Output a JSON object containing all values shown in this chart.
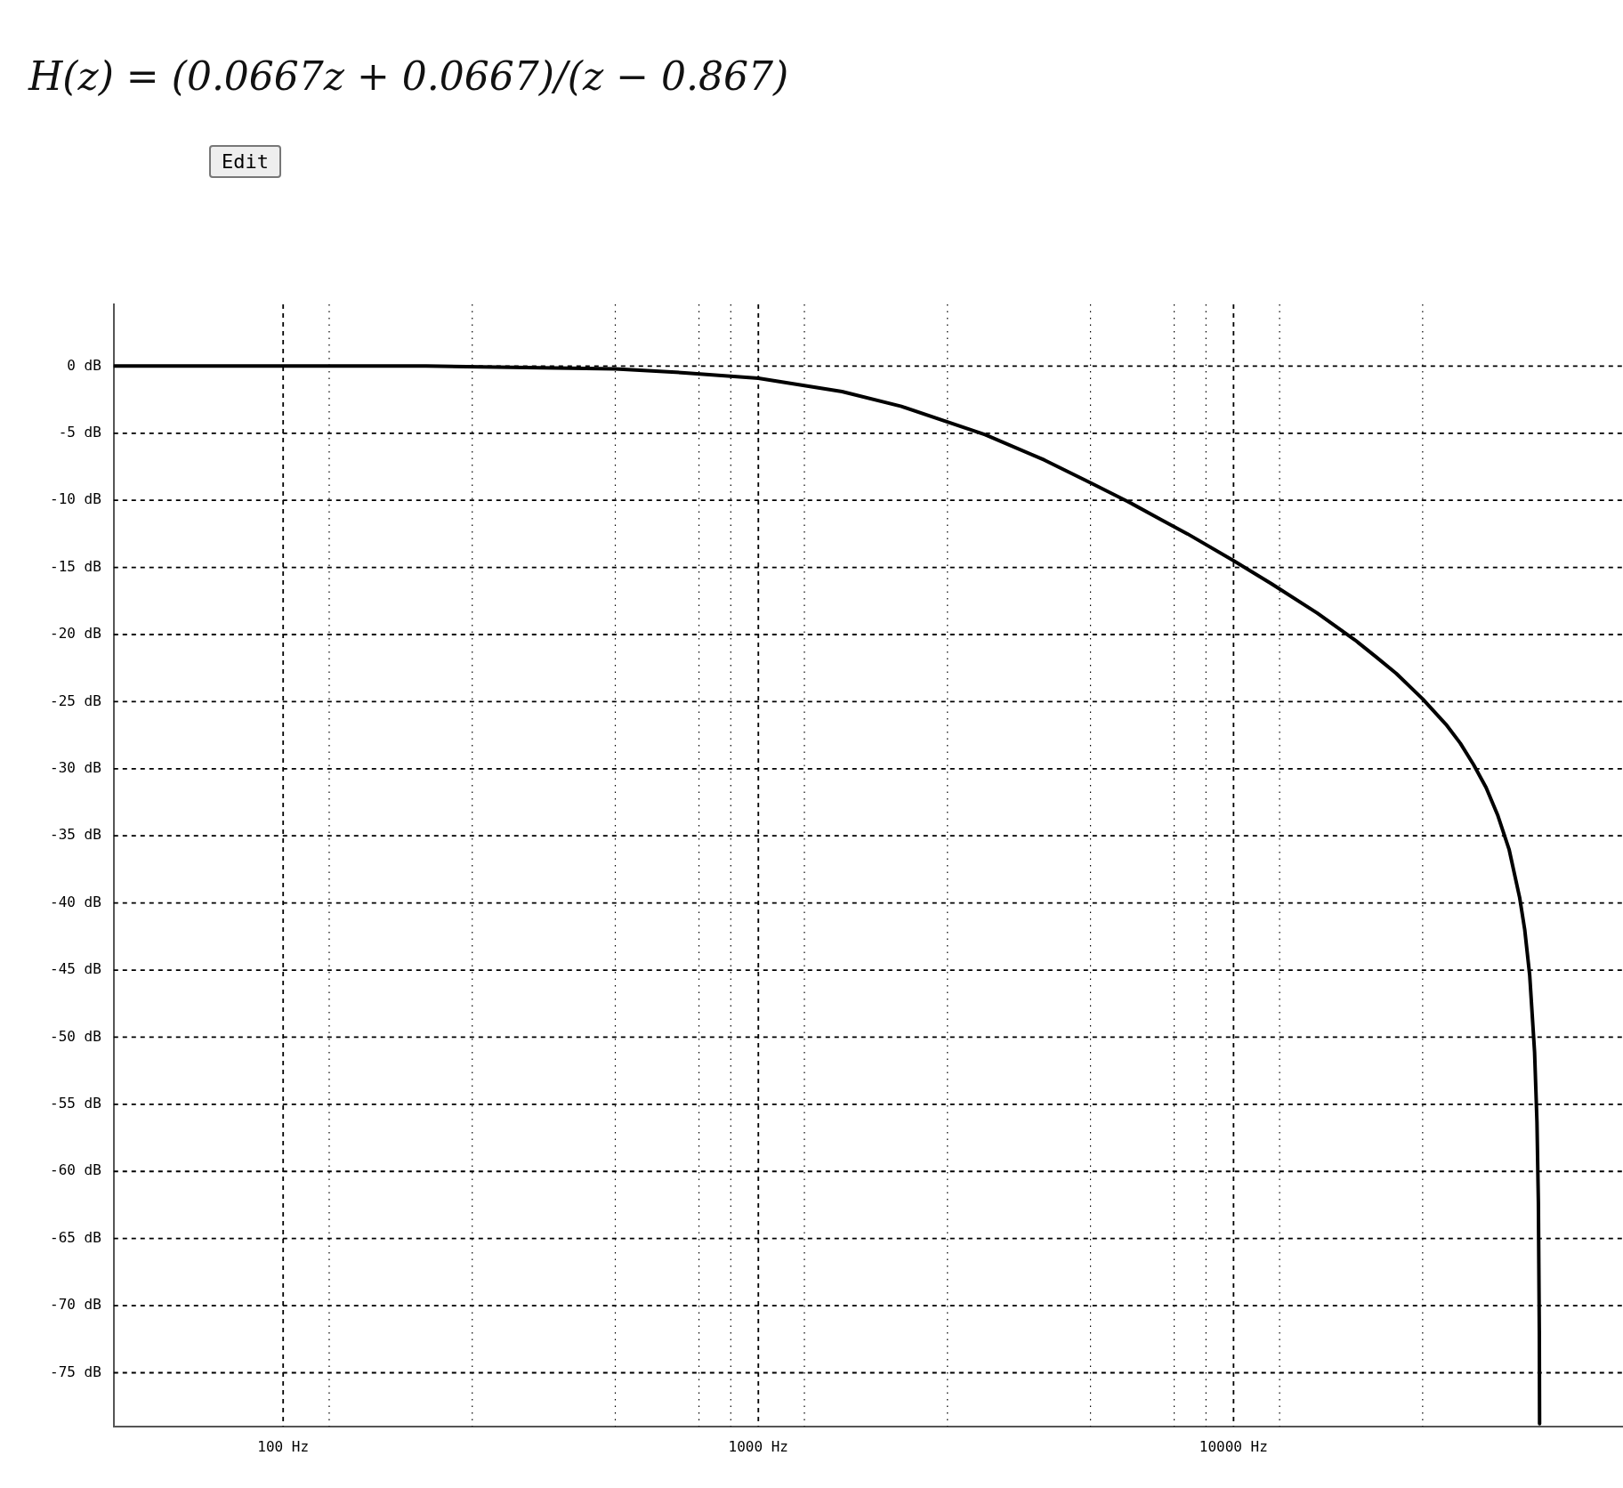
{
  "chart_data": {
    "type": "line",
    "title": "H(z) = (0.0667z + 0.0667)/(z − 0.867)",
    "annotations": [
      "Edit"
    ],
    "x": [
      44,
      100,
      200,
      500,
      700,
      1000,
      1500,
      2000,
      3000,
      4000,
      5000,
      6000,
      7000,
      8000,
      10000,
      12000,
      15000,
      18000,
      20000,
      22000,
      25000,
      28000,
      30000,
      32000,
      34000,
      36000,
      38000,
      40000,
      41000,
      42000,
      43000,
      43500,
      43800,
      44000,
      44055
    ],
    "values": [
      0.0,
      0.0,
      0.0,
      -0.2,
      -0.5,
      -0.9,
      -1.9,
      -3.0,
      -5.1,
      -7.0,
      -8.7,
      -10.1,
      -11.4,
      -12.5,
      -14.5,
      -16.2,
      -18.4,
      -20.4,
      -21.7,
      -22.9,
      -24.8,
      -26.7,
      -28.1,
      -29.7,
      -31.4,
      -33.5,
      -36.0,
      -39.6,
      -42.0,
      -45.4,
      -51.1,
      -56.3,
      -62.3,
      -71.9,
      -78.8
    ],
    "color": "#000000",
    "marker": "none",
    "line_style": "solid",
    "log": "x",
    "grid": true,
    "xlim": [
      44,
      66000
    ],
    "ylim": [
      -79,
      4.6
    ],
    "xticks": [
      {
        "value": 100,
        "label": "100 Hz"
      },
      {
        "value": 125,
        "label": null
      },
      {
        "value": 250,
        "label": null
      },
      {
        "value": 500,
        "label": null
      },
      {
        "value": 750,
        "label": null
      },
      {
        "value": 875,
        "label": null
      },
      {
        "value": 1000,
        "label": "1000 Hz"
      },
      {
        "value": 1250,
        "label": null
      },
      {
        "value": 2500,
        "label": null
      },
      {
        "value": 5000,
        "label": null
      },
      {
        "value": 7500,
        "label": null
      },
      {
        "value": 8750,
        "label": null
      },
      {
        "value": 10000,
        "label": "10000 Hz"
      },
      {
        "value": 12500,
        "label": null
      },
      {
        "value": 25000,
        "label": null
      }
    ],
    "yticks": [
      {
        "value": 0,
        "label": "0 dB"
      },
      {
        "value": -5,
        "label": "-5 dB"
      },
      {
        "value": -10,
        "label": "-10 dB"
      },
      {
        "value": -15,
        "label": "-15 dB"
      },
      {
        "value": -20,
        "label": "-20 dB"
      },
      {
        "value": -25,
        "label": "-25 dB"
      },
      {
        "value": -30,
        "label": "-30 dB"
      },
      {
        "value": -35,
        "label": "-35 dB"
      },
      {
        "value": -40,
        "label": "-40 dB"
      },
      {
        "value": -45,
        "label": "-45 dB"
      },
      {
        "value": -50,
        "label": "-50 dB"
      },
      {
        "value": -55,
        "label": "-55 dB"
      },
      {
        "value": -60,
        "label": "-60 dB"
      },
      {
        "value": -65,
        "label": "-65 dB"
      },
      {
        "value": -70,
        "label": "-70 dB"
      },
      {
        "value": -75,
        "label": "-75 dB"
      }
    ]
  }
}
